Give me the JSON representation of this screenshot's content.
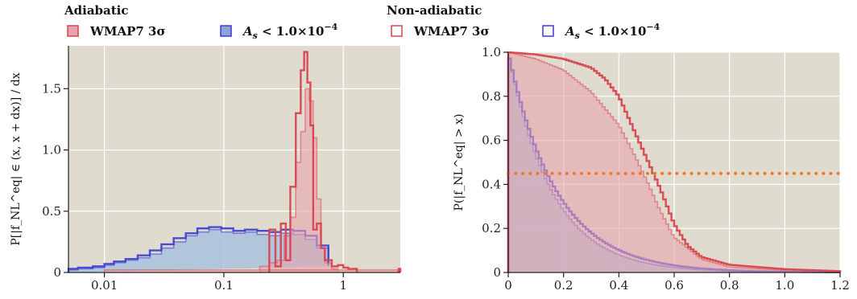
{
  "legend": {
    "groups": [
      {
        "title": "Adiabatic",
        "entries": [
          {
            "label": "WMAP7 3σ",
            "color": "#d9434f",
            "fill": "#e8a3ad"
          },
          {
            "label": "A_s < 1.0×10^{-4}",
            "color": "#3b3bd4",
            "fill": "#8fa3d8"
          }
        ]
      },
      {
        "title": "Non-adiabatic",
        "entries": [
          {
            "label": "WMAP7 3σ",
            "color": "#d9434f",
            "fill": "none"
          },
          {
            "label": "A_s < 1.0×10^{-4}",
            "color": "#3b3bd4",
            "fill": "none"
          }
        ]
      }
    ]
  },
  "colors": {
    "plot_bg": "#dfdbcf",
    "red": "#d9434f",
    "red_fill": "#e8a3ad",
    "blue": "#3b3bd4",
    "blue_fill": "#a9c2dc",
    "dotted": "#f07a30"
  },
  "chart_data": [
    {
      "type": "histogram",
      "xscale": "log",
      "xlim": [
        0.005,
        3
      ],
      "ylim": [
        0,
        1.85
      ],
      "xticks": [
        {
          "v": 0.01,
          "label": "0.01"
        },
        {
          "v": 0.1,
          "label": "0.1"
        },
        {
          "v": 1,
          "label": "1"
        }
      ],
      "yticks": [
        {
          "v": 0,
          "label": "0"
        },
        {
          "v": 0.5,
          "label": "0.5"
        },
        {
          "v": 1.0,
          "label": "1.0"
        },
        {
          "v": 1.5,
          "label": "1.5"
        }
      ],
      "ylabel": "P[|f_NL^eq| ∈ (x, x + dx)] / dx",
      "grid": true,
      "series": [
        {
          "name": "adiabatic-blue",
          "style": "filled-blue",
          "edges": [
            0.005,
            0.006,
            0.008,
            0.01,
            0.012,
            0.015,
            0.019,
            0.024,
            0.03,
            0.038,
            0.048,
            0.06,
            0.075,
            0.095,
            0.12,
            0.15,
            0.19,
            0.24,
            0.3,
            0.38,
            0.48,
            0.6,
            0.75
          ],
          "values": [
            0.02,
            0.03,
            0.04,
            0.06,
            0.08,
            0.1,
            0.12,
            0.15,
            0.2,
            0.25,
            0.3,
            0.33,
            0.35,
            0.33,
            0.32,
            0.33,
            0.31,
            0.3,
            0.32,
            0.31,
            0.27,
            0.2,
            0.05
          ]
        },
        {
          "name": "nonadiabatic-blue",
          "style": "line-blue",
          "edges": [
            0.005,
            0.006,
            0.008,
            0.01,
            0.012,
            0.015,
            0.019,
            0.024,
            0.03,
            0.038,
            0.048,
            0.06,
            0.075,
            0.095,
            0.12,
            0.15,
            0.19,
            0.24,
            0.3,
            0.38,
            0.48,
            0.6,
            0.75
          ],
          "values": [
            0.03,
            0.04,
            0.05,
            0.07,
            0.09,
            0.11,
            0.14,
            0.18,
            0.23,
            0.28,
            0.32,
            0.36,
            0.37,
            0.36,
            0.34,
            0.35,
            0.34,
            0.33,
            0.35,
            0.34,
            0.3,
            0.22,
            0.06
          ]
        },
        {
          "name": "adiabatic-red",
          "style": "filled-red",
          "edges": [
            0.2,
            0.24,
            0.28,
            0.32,
            0.36,
            0.4,
            0.44,
            0.48,
            0.52,
            0.56,
            0.6,
            0.65,
            0.7,
            0.8,
            0.9
          ],
          "values": [
            0.05,
            0.08,
            0.1,
            0.3,
            0.45,
            0.9,
            1.15,
            1.5,
            1.4,
            1.1,
            0.6,
            0.2,
            0.08,
            0.03
          ],
          "extra": [
            {
              "x0": 0.01,
              "x1": 3,
              "v": 0.02
            }
          ]
        },
        {
          "name": "nonadiabatic-red",
          "style": "line-red",
          "edges": [
            0.24,
            0.27,
            0.3,
            0.33,
            0.36,
            0.4,
            0.44,
            0.47,
            0.5,
            0.53,
            0.56,
            0.6,
            0.65,
            0.7,
            0.8,
            0.9,
            1.0,
            1.1,
            1.3
          ],
          "values": [
            0.35,
            0.05,
            0.4,
            0.1,
            0.7,
            1.3,
            1.65,
            1.8,
            1.55,
            1.2,
            0.35,
            0.4,
            0.2,
            0.1,
            0.05,
            0.06,
            0.04,
            0.03
          ],
          "extra": [
            {
              "x0": 2.9,
              "x1": 3.0,
              "v": 0.03
            }
          ]
        }
      ]
    },
    {
      "type": "cdf-step",
      "xlim": [
        0,
        1.2
      ],
      "ylim": [
        0,
        1.0
      ],
      "xticks": [
        {
          "v": 0,
          "label": "0"
        },
        {
          "v": 0.2,
          "label": "0.2"
        },
        {
          "v": 0.4,
          "label": "0.4"
        },
        {
          "v": 0.6,
          "label": "0.6"
        },
        {
          "v": 0.8,
          "label": "0.8"
        },
        {
          "v": 1.0,
          "label": "1.0"
        },
        {
          "v": 1.2,
          "label": "1.2"
        }
      ],
      "yticks": [
        {
          "v": 0,
          "label": "0"
        },
        {
          "v": 0.2,
          "label": "0.2"
        },
        {
          "v": 0.4,
          "label": "0.4"
        },
        {
          "v": 0.6,
          "label": "0.6"
        },
        {
          "v": 0.8,
          "label": "0.8"
        },
        {
          "v": 1.0,
          "label": "1.0"
        }
      ],
      "ylabel": "P(|f_NL^eq| > x)",
      "grid": true,
      "hline": {
        "y": 0.45,
        "style": "dotted"
      },
      "series": [
        {
          "name": "adiabatic-blue",
          "style": "filled-blue",
          "decay": 6.3
        },
        {
          "name": "nonadiabatic-blue",
          "style": "line-blue",
          "decay": 5.7
        },
        {
          "name": "adiabatic-red",
          "style": "filled-red",
          "knots": [
            [
              0,
              1.0
            ],
            [
              0.1,
              0.97
            ],
            [
              0.2,
              0.92
            ],
            [
              0.3,
              0.82
            ],
            [
              0.4,
              0.67
            ],
            [
              0.45,
              0.55
            ],
            [
              0.5,
              0.42
            ],
            [
              0.55,
              0.28
            ],
            [
              0.6,
              0.16
            ],
            [
              0.7,
              0.06
            ],
            [
              0.8,
              0.025
            ],
            [
              1.0,
              0.01
            ],
            [
              1.2,
              0.005
            ]
          ]
        },
        {
          "name": "nonadiabatic-red",
          "style": "line-red",
          "knots": [
            [
              0,
              1.0
            ],
            [
              0.1,
              0.99
            ],
            [
              0.2,
              0.97
            ],
            [
              0.3,
              0.93
            ],
            [
              0.35,
              0.88
            ],
            [
              0.4,
              0.8
            ],
            [
              0.45,
              0.66
            ],
            [
              0.5,
              0.52
            ],
            [
              0.55,
              0.38
            ],
            [
              0.6,
              0.22
            ],
            [
              0.65,
              0.12
            ],
            [
              0.7,
              0.07
            ],
            [
              0.8,
              0.035
            ],
            [
              1.0,
              0.015
            ],
            [
              1.2,
              0.006
            ]
          ]
        }
      ]
    }
  ]
}
